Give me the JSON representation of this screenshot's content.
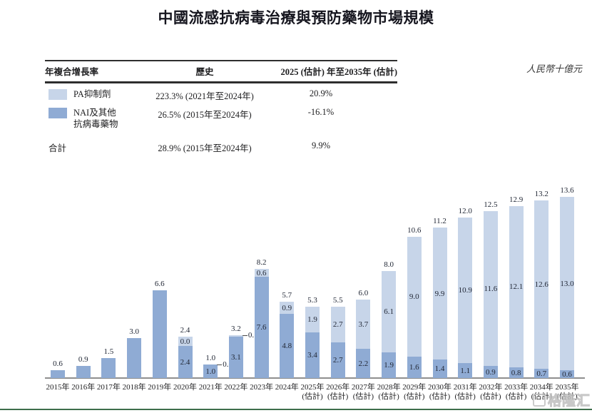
{
  "title": "中國流感抗病毒治療與預防藥物市場規模",
  "unit_label": "人民幣十億元",
  "watermark": "格隆汇",
  "colors": {
    "pa": "#c7d5e9",
    "nai": "#8fabd4",
    "axis": "#8f8f8f",
    "bottom_rule": "#3e6e4b",
    "watermark_gray": "#bfbfbf"
  },
  "summary_table": {
    "headers": {
      "col1": "年複合增長率",
      "col2": "歷史",
      "col3": "2025 (估計) 年至2035年 (估計)"
    },
    "rows": [
      {
        "swatch": "pa",
        "label_lines": [
          "PA抑制劑"
        ],
        "history": "223.3% (2021年至2024年)",
        "forecast": "20.9%"
      },
      {
        "swatch": "nai",
        "label_lines": [
          "NAI及其他",
          "抗病毒藥物"
        ],
        "history": "26.5% (2015年至2024年)",
        "forecast": "-16.1%"
      }
    ],
    "total_row": {
      "label": "合計",
      "history": "28.9% (2015年至2024年)",
      "forecast": "9.9%"
    }
  },
  "chart_data": {
    "type": "bar",
    "stacked": true,
    "title": "中國流感抗病毒治療與預防藥物市場規模",
    "ylabel": "人民幣十億元",
    "ylim": [
      0,
      14
    ],
    "grid": false,
    "legend_position": "table-top-left",
    "categories": [
      "2015年",
      "2016年",
      "2017年",
      "2018年",
      "2019年",
      "2020年",
      "2021年",
      "2022年",
      "2023年",
      "2024年",
      "2025年",
      "2026年",
      "2027年",
      "2028年",
      "2029年",
      "2030年",
      "2031年",
      "2032年",
      "2033年",
      "2034年",
      "2035年"
    ],
    "estimated_from_index": 10,
    "est_suffix": "(估計)",
    "totals": [
      "0.6",
      "0.9",
      "1.5",
      "3.0",
      "6.6",
      "2.4",
      "1.0",
      "3.2",
      "8.2",
      "5.7",
      "5.3",
      "5.5",
      "6.0",
      "8.0",
      "10.6",
      "11.2",
      "12.0",
      "12.5",
      "12.9",
      "13.2",
      "13.6"
    ],
    "series": [
      {
        "name": "PA抑制劑",
        "color_key": "pa",
        "values": [
          null,
          null,
          null,
          null,
          null,
          0.0,
          0.0,
          0.1,
          0.6,
          0.9,
          1.9,
          2.7,
          3.7,
          6.1,
          9.0,
          9.9,
          10.9,
          11.6,
          12.1,
          12.6,
          13.0
        ],
        "labels": [
          null,
          null,
          null,
          null,
          null,
          "0.0",
          "0.0",
          "0.1",
          "0.6",
          "0.9",
          "1.9",
          "2.7",
          "3.7",
          "6.1",
          "9.0",
          "9.9",
          "10.9",
          "11.6",
          "12.1",
          "12.6",
          "13.0"
        ],
        "label_modes": [
          null,
          null,
          null,
          null,
          null,
          "box",
          "side",
          "side",
          "inside",
          "inside",
          "inside",
          "inside",
          "inside",
          "inside",
          "inside",
          "inside",
          "inside",
          "inside",
          "inside",
          "inside",
          "inside"
        ]
      },
      {
        "name": "NAI及其他抗病毒藥物",
        "color_key": "nai",
        "values": [
          0.6,
          0.9,
          1.5,
          3.0,
          6.6,
          2.4,
          1.0,
          3.1,
          7.6,
          4.8,
          3.4,
          2.7,
          2.2,
          1.9,
          1.6,
          1.4,
          1.1,
          0.9,
          0.8,
          0.7,
          0.6
        ],
        "labels": [
          null,
          null,
          null,
          null,
          null,
          "2.4",
          "1.0",
          "3.1",
          "7.6",
          "4.8",
          "3.4",
          "2.7",
          "2.2",
          "1.9",
          "1.6",
          "1.4",
          "1.1",
          "0.9",
          "0.8",
          "0.7",
          "0.6"
        ]
      }
    ]
  }
}
